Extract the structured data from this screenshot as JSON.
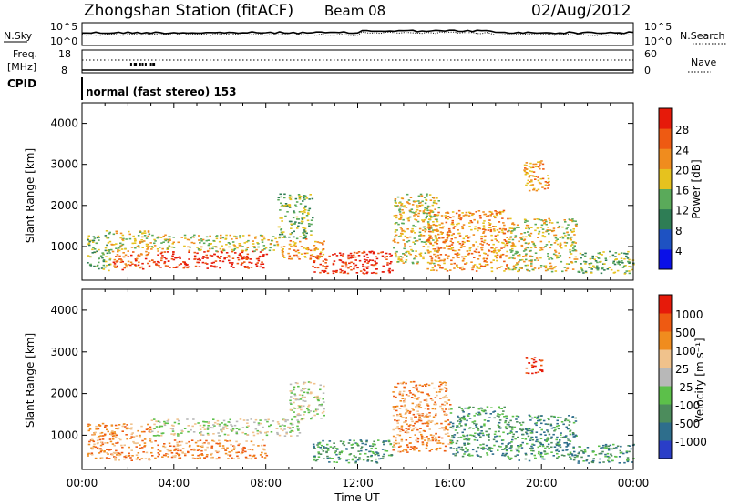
{
  "header": {
    "station": "Zhongshan Station (fitACF)",
    "beam": "Beam 08",
    "date": "02/Aug/2012"
  },
  "status_panels": {
    "nsky_label": "N.Sky",
    "nsearch_label": "N.Search",
    "nsky_ticks": [
      "10^5",
      "10^0"
    ],
    "nsearch_ticks": [
      "10^5",
      "10^0"
    ],
    "freq_label": [
      "Freq.",
      "[MHz]"
    ],
    "freq_ticks": [
      "18",
      "8"
    ],
    "nave_label": "Nave",
    "nave_ticks": [
      "60",
      "0"
    ],
    "cpid_label": "CPID",
    "cpid_text": "normal (fast stereo) 153"
  },
  "chart_data": [
    {
      "type": "heatmap",
      "name": "power-panel",
      "ylabel": "Slant Range [km]",
      "xlabel": "",
      "yticks": [
        "4000",
        "3000",
        "2000",
        "1000"
      ],
      "ylim": [
        180,
        4500
      ],
      "xlim": [
        0,
        24
      ],
      "colorbar_label": "Power [dB]",
      "colorbar_ticks": [
        "28",
        "24",
        "20",
        "16",
        "12",
        "8",
        "4"
      ],
      "colors": [
        "#0a10e8",
        "#1e52c2",
        "#2e7d55",
        "#5aaa5a",
        "#e6c21e",
        "#f08c1e",
        "#ee5a12",
        "#e61a0a"
      ],
      "blobs": [
        {
          "t0": 0.2,
          "t1": 1.2,
          "r0": 400,
          "r1": 1300,
          "level": 3
        },
        {
          "t0": 1.0,
          "t1": 3.0,
          "r0": 900,
          "r1": 1400,
          "level": 4
        },
        {
          "t0": 1.3,
          "t1": 3.0,
          "r0": 450,
          "r1": 900,
          "level": 6
        },
        {
          "t0": 3.0,
          "t1": 8.0,
          "r0": 480,
          "r1": 900,
          "level": 7
        },
        {
          "t0": 3.0,
          "t1": 8.5,
          "r0": 900,
          "r1": 1300,
          "level": 4
        },
        {
          "t0": 8.5,
          "t1": 10.0,
          "r0": 1200,
          "r1": 2300,
          "level": 3
        },
        {
          "t0": 8.5,
          "t1": 10.5,
          "r0": 700,
          "r1": 1200,
          "level": 5
        },
        {
          "t0": 10.0,
          "t1": 13.5,
          "r0": 350,
          "r1": 900,
          "level": 7
        },
        {
          "t0": 13.5,
          "t1": 15.5,
          "r0": 600,
          "r1": 2300,
          "level": 4
        },
        {
          "t0": 15.0,
          "t1": 18.5,
          "r0": 400,
          "r1": 1900,
          "level": 5
        },
        {
          "t0": 18.5,
          "t1": 21.5,
          "r0": 400,
          "r1": 1700,
          "level": 4
        },
        {
          "t0": 21.5,
          "t1": 24.0,
          "r0": 350,
          "r1": 900,
          "level": 3
        },
        {
          "t0": 19.2,
          "t1": 20.3,
          "r0": 2300,
          "r1": 3100,
          "level": 5
        }
      ]
    },
    {
      "type": "heatmap",
      "name": "velocity-panel",
      "ylabel": "Slant Range [km]",
      "xlabel": "Time UT",
      "xticks": [
        "00:00",
        "04:00",
        "08:00",
        "12:00",
        "16:00",
        "20:00",
        "00:00"
      ],
      "yticks": [
        "4000",
        "3000",
        "2000",
        "1000"
      ],
      "ylim": [
        180,
        4500
      ],
      "xlim": [
        0,
        24
      ],
      "colorbar_label": "Velocity [m s⁻¹]",
      "colorbar_ticks": [
        "1000",
        "500",
        "100",
        "25",
        "-25",
        "-100",
        "-500",
        "-1000"
      ],
      "colors": [
        "#2a3ec8",
        "#2e6e8c",
        "#4c8c5c",
        "#5cc04a",
        "#b8b8b8",
        "#f0c28c",
        "#f08c1e",
        "#ee5a12",
        "#e61a0a"
      ],
      "blobs": [
        {
          "t0": 0.2,
          "t1": 3.0,
          "r0": 400,
          "r1": 1300,
          "level": 6
        },
        {
          "t0": 3.0,
          "t1": 8.0,
          "r0": 450,
          "r1": 900,
          "level": 6
        },
        {
          "t0": 3.0,
          "t1": 9.5,
          "r0": 1000,
          "r1": 1400,
          "level": 4
        },
        {
          "t0": 9.0,
          "t1": 10.5,
          "r0": 1400,
          "r1": 2300,
          "level": 4
        },
        {
          "t0": 10.0,
          "t1": 13.5,
          "r0": 350,
          "r1": 900,
          "level": 2
        },
        {
          "t0": 13.5,
          "t1": 16.0,
          "r0": 600,
          "r1": 2300,
          "level": 6
        },
        {
          "t0": 16.0,
          "t1": 18.5,
          "r0": 500,
          "r1": 1700,
          "level": 2
        },
        {
          "t0": 18.5,
          "t1": 21.5,
          "r0": 400,
          "r1": 1500,
          "level": 2
        },
        {
          "t0": 21.5,
          "t1": 24.0,
          "r0": 350,
          "r1": 800,
          "level": 2
        },
        {
          "t0": 19.3,
          "t1": 20.0,
          "r0": 2500,
          "r1": 2900,
          "level": 8
        }
      ]
    }
  ]
}
